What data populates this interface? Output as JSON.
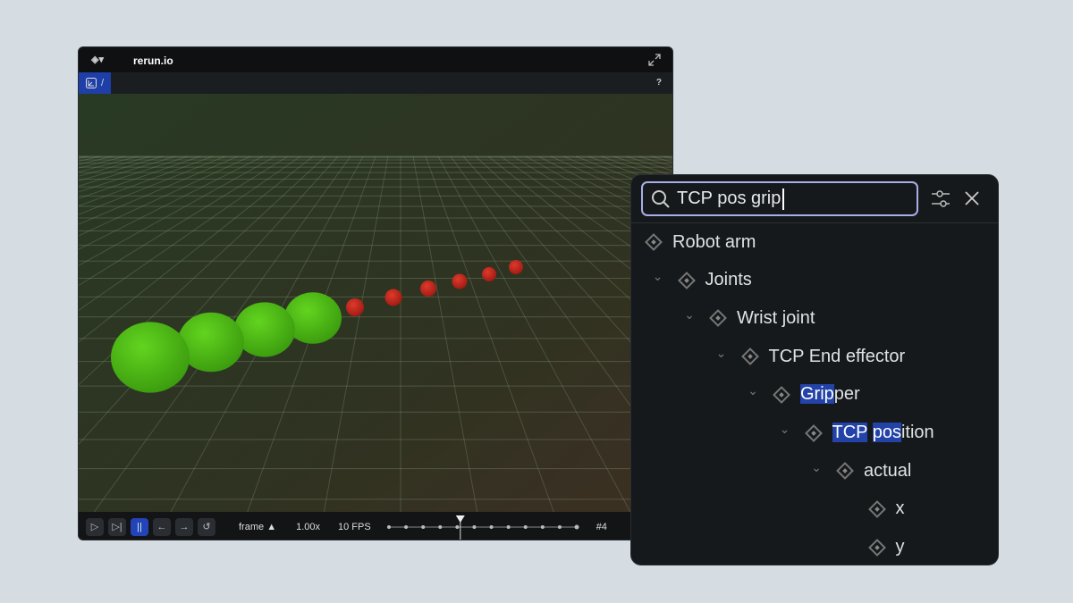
{
  "viewer": {
    "title": "rerun.io",
    "breadcrumb_sep": "/",
    "help": "?",
    "timeline": {
      "timeline_name": "frame",
      "speed": "1.00x",
      "fps": "10 FPS",
      "current": "#4",
      "progress": 0.38,
      "buttons": [
        "play",
        "step-forward",
        "pause",
        "step-back",
        "step-forward-arrow",
        "loop"
      ]
    }
  },
  "search_panel": {
    "query": "TCP pos grip",
    "tree": [
      {
        "label": "Robot arm",
        "level": 0,
        "chevron": false,
        "parts": [
          {
            "t": "Robot arm",
            "h": false
          }
        ]
      },
      {
        "label": "Joints",
        "level": 1,
        "chevron": true,
        "parts": [
          {
            "t": "Joints",
            "h": false
          }
        ]
      },
      {
        "label": "Wrist joint",
        "level": 2,
        "chevron": true,
        "parts": [
          {
            "t": "Wrist joint",
            "h": false
          }
        ]
      },
      {
        "label": "TCP End effector",
        "level": 3,
        "chevron": true,
        "parts": [
          {
            "t": "TCP End effector",
            "h": false
          }
        ]
      },
      {
        "label": "Gripper",
        "level": 4,
        "chevron": true,
        "parts": [
          {
            "t": "Grip",
            "h": true
          },
          {
            "t": "per",
            "h": false
          }
        ]
      },
      {
        "label": "TCP position",
        "level": 5,
        "chevron": true,
        "parts": [
          {
            "t": "TCP",
            "h": true
          },
          {
            "t": " ",
            "h": false
          },
          {
            "t": "pos",
            "h": true
          },
          {
            "t": "ition",
            "h": false
          }
        ]
      },
      {
        "label": "actual",
        "level": 6,
        "chevron": true,
        "parts": [
          {
            "t": "actual",
            "h": false
          }
        ]
      },
      {
        "label": "x",
        "level": 7,
        "chevron": false,
        "parts": [
          {
            "t": "x",
            "h": false
          }
        ]
      },
      {
        "label": "y",
        "level": 7,
        "chevron": false,
        "parts": [
          {
            "t": "y",
            "h": false
          }
        ]
      }
    ]
  },
  "colors": {
    "highlight": "#2343a8",
    "accent": "#2443b8",
    "sphere_green": "#4fc21a",
    "point_red": "#c8281e"
  }
}
